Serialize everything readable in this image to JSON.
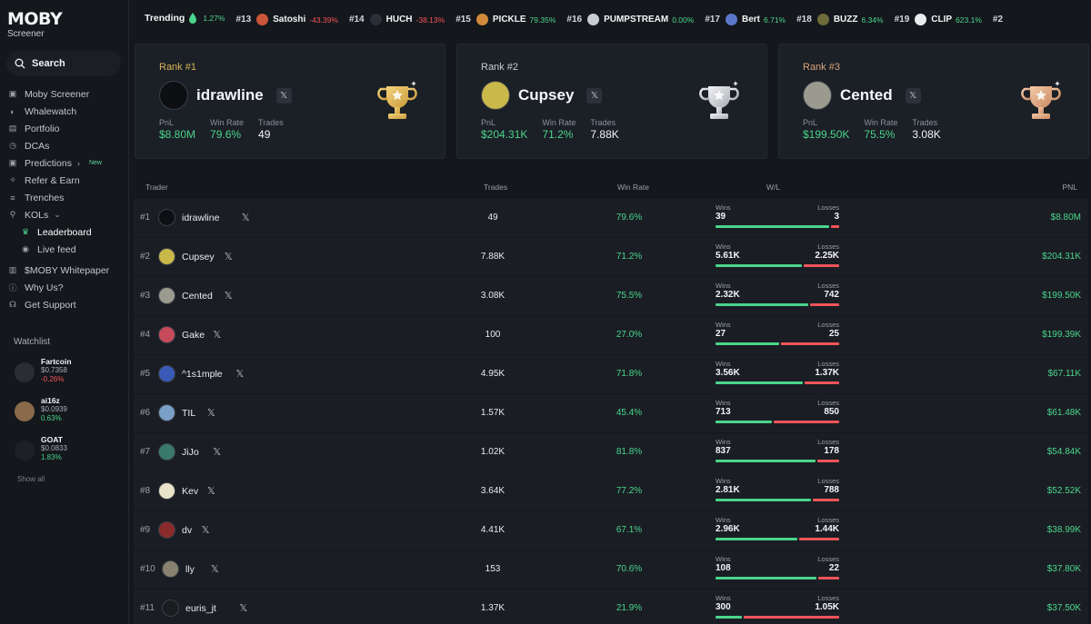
{
  "app": {
    "logo": "MOBY",
    "logo_sub": "Screener"
  },
  "search": {
    "label": "Search"
  },
  "nav": [
    {
      "label": "Moby Screener",
      "icon": "moby-logo-icon"
    },
    {
      "label": "Whalewatch",
      "icon": "whale-icon"
    },
    {
      "label": "Portfolio",
      "icon": "wallet-icon"
    },
    {
      "label": "DCAs",
      "icon": "clock-icon"
    },
    {
      "label": "Predictions",
      "icon": "moby-logo-icon",
      "badge": "New"
    },
    {
      "label": "Refer & Earn",
      "icon": "gift-icon"
    },
    {
      "label": "Trenches",
      "icon": "list-icon"
    },
    {
      "label": "KOLs",
      "icon": "microphone-icon"
    },
    {
      "label": "Leaderboard",
      "icon": "trophy-icon"
    },
    {
      "label": "Live feed",
      "icon": "broadcast-icon"
    },
    {
      "label": "$MOBY Whitepaper",
      "icon": "book-icon"
    },
    {
      "label": "Why Us?",
      "icon": "info-icon"
    },
    {
      "label": "Get Support",
      "icon": "headset-icon"
    }
  ],
  "watchlist": {
    "title": "Watchlist",
    "show_all": "Show all",
    "items": [
      {
        "name": "Fartcoin",
        "price": "$0.7358",
        "change": "-0.26%",
        "dir": "neg",
        "color": "#2a2d33"
      },
      {
        "name": "ai16z",
        "price": "$0.0939",
        "change": "0.63%",
        "dir": "pos",
        "color": "#8a6a4a"
      },
      {
        "name": "GOAT",
        "price": "$0.0833",
        "change": "1.83%",
        "dir": "pos",
        "color": "#1d2027"
      }
    ]
  },
  "ticker": {
    "label": "Trending",
    "first_change": "1.27%",
    "items": [
      {
        "rank": "#13",
        "symbol": "Satoshi",
        "change": "-43.39%",
        "dir": "neg",
        "color": "#c9553a"
      },
      {
        "rank": "#14",
        "symbol": "HUCH",
        "change": "-38.13%",
        "dir": "neg",
        "color": "#2b2f37"
      },
      {
        "rank": "#15",
        "symbol": "PICKLE",
        "change": "79.35%",
        "dir": "pos",
        "color": "#d08a3a"
      },
      {
        "rank": "#16",
        "symbol": "PUMPSTREAM",
        "change": "0.00%",
        "dir": "pos",
        "color": "#c8ccd3"
      },
      {
        "rank": "#17",
        "symbol": "Bert",
        "change": "6.71%",
        "dir": "pos",
        "color": "#5b78c8"
      },
      {
        "rank": "#18",
        "symbol": "BUZZ",
        "change": "6.34%",
        "dir": "pos",
        "color": "#6e6a3a"
      },
      {
        "rank": "#19",
        "symbol": "CLIP",
        "change": "623.1%",
        "dir": "pos",
        "color": "#e9ebef"
      },
      {
        "rank": "#2",
        "symbol": "",
        "change": "",
        "dir": "pos",
        "color": "#14171c"
      }
    ]
  },
  "columns": {
    "trader": "Trader",
    "trades": "Trades",
    "winrate": "Win Rate",
    "wl": "W/L",
    "pnl": "PNL",
    "wins": "Wins",
    "losses": "Losses"
  },
  "top3": [
    {
      "rank": "Rank #1",
      "name": "idrawline",
      "pnl_label": "PnL",
      "pnl": "$8.80M",
      "wr_label": "Win Rate",
      "wr": "79.6%",
      "trades_label": "Trades",
      "trades": "49",
      "rank_color": "#d8b45a",
      "avatar": "#0d0f12",
      "trophy": "gold"
    },
    {
      "rank": "Rank #2",
      "name": "Cupsey",
      "pnl_label": "PnL",
      "pnl": "$204.31K",
      "wr_label": "Win Rate",
      "wr": "71.2%",
      "trades_label": "Trades",
      "trades": "7.88K",
      "rank_color": "#c8ccd3",
      "avatar": "#c9b84a",
      "trophy": "silver"
    },
    {
      "rank": "Rank #3",
      "name": "Cented",
      "pnl_label": "PnL",
      "pnl": "$199.50K",
      "wr_label": "Win Rate",
      "wr": "75.5%",
      "trades_label": "Trades",
      "trades": "3.08K",
      "rank_color": "#d6a27a",
      "avatar": "#9a9a8e",
      "trophy": "bronze"
    }
  ],
  "rows": [
    {
      "rank": "#1",
      "name": "idrawline",
      "trades": "49",
      "wr": "79.6%",
      "wins": "39",
      "losses": "3",
      "win_frac": 0.93,
      "pnl": "$8.80M",
      "avatar": "#0d0f12"
    },
    {
      "rank": "#2",
      "name": "Cupsey",
      "trades": "7.88K",
      "wr": "71.2%",
      "wins": "5.61K",
      "losses": "2.25K",
      "win_frac": 0.71,
      "pnl": "$204.31K",
      "avatar": "#c9b84a"
    },
    {
      "rank": "#3",
      "name": "Cented",
      "trades": "3.08K",
      "wr": "75.5%",
      "wins": "2.32K",
      "losses": "742",
      "win_frac": 0.76,
      "pnl": "$199.50K",
      "avatar": "#9a9a8e"
    },
    {
      "rank": "#4",
      "name": "Gake",
      "trades": "100",
      "wr": "27.0%",
      "wins": "27",
      "losses": "25",
      "win_frac": 0.52,
      "pnl": "$199.39K",
      "avatar": "#c74a5a"
    },
    {
      "rank": "#5",
      "name": "^1s1mple",
      "trades": "4.95K",
      "wr": "71.8%",
      "wins": "3.56K",
      "losses": "1.37K",
      "win_frac": 0.72,
      "pnl": "$67.11K",
      "avatar": "#3a5ab8"
    },
    {
      "rank": "#6",
      "name": "TIL",
      "trades": "1.57K",
      "wr": "45.4%",
      "wins": "713",
      "losses": "850",
      "win_frac": 0.46,
      "pnl": "$61.48K",
      "avatar": "#7aa0c8"
    },
    {
      "rank": "#7",
      "name": "JiJo",
      "trades": "1.02K",
      "wr": "81.8%",
      "wins": "837",
      "losses": "178",
      "win_frac": 0.82,
      "pnl": "$54.84K",
      "avatar": "#3a7a6a"
    },
    {
      "rank": "#8",
      "name": "Kev",
      "trades": "3.64K",
      "wr": "77.2%",
      "wins": "2.81K",
      "losses": "788",
      "win_frac": 0.78,
      "pnl": "$52.52K",
      "avatar": "#e8e2c8"
    },
    {
      "rank": "#9",
      "name": "dv",
      "trades": "4.41K",
      "wr": "67.1%",
      "wins": "2.96K",
      "losses": "1.44K",
      "win_frac": 0.67,
      "pnl": "$38.99K",
      "avatar": "#8a2a2a"
    },
    {
      "rank": "#10",
      "name": "lly",
      "trades": "153",
      "wr": "70.6%",
      "wins": "108",
      "losses": "22",
      "win_frac": 0.83,
      "pnl": "$37.80K",
      "avatar": "#8a8270"
    },
    {
      "rank": "#11",
      "name": "euris_jt",
      "trades": "1.37K",
      "wr": "21.9%",
      "wins": "300",
      "losses": "1.05K",
      "win_frac": 0.22,
      "pnl": "$37.50K",
      "avatar": "#1a1c20"
    }
  ]
}
